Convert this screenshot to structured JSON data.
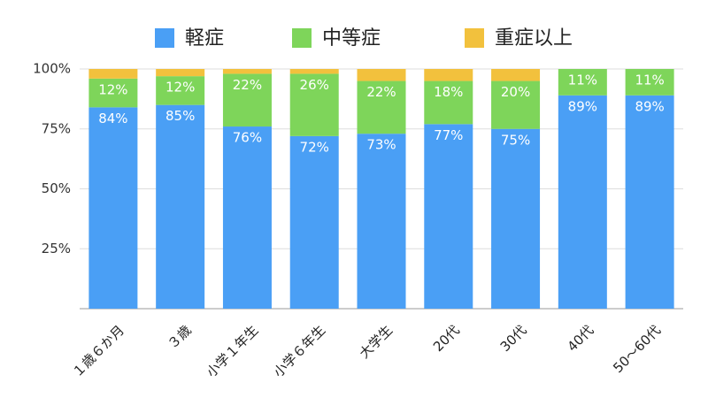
{
  "chart_data": {
    "type": "stacked_bar",
    "categories": [
      "１歳６か月",
      "３歳",
      "小学１年生",
      "小学６年生",
      "大学生",
      "20代",
      "30代",
      "40代",
      "50～60代"
    ],
    "series": [
      {
        "name": "軽症",
        "color": "#4a9ff5",
        "values": [
          84,
          85,
          76,
          72,
          73,
          77,
          75,
          89,
          89
        ],
        "value_labels": [
          "84%",
          "85%",
          "76%",
          "72%",
          "73%",
          "77%",
          "75%",
          "89%",
          "89%"
        ]
      },
      {
        "name": "中等症",
        "color": "#7ed55a",
        "values": [
          12,
          12,
          22,
          26,
          22,
          18,
          20,
          11,
          11
        ],
        "value_labels": [
          "12%",
          "12%",
          "22%",
          "26%",
          "22%",
          "18%",
          "20%",
          "11%",
          "11%"
        ]
      },
      {
        "name": "重症以上",
        "color": "#f2c13d",
        "values": [
          4,
          3,
          2,
          2,
          5,
          5,
          5,
          0,
          0
        ]
      }
    ],
    "ylim": [
      0,
      100
    ],
    "yticks": [
      {
        "value": 25,
        "label": "25%"
      },
      {
        "value": 50,
        "label": "50%"
      },
      {
        "value": 75,
        "label": "75%"
      },
      {
        "value": 100,
        "label": "100%"
      }
    ],
    "grid": true
  }
}
